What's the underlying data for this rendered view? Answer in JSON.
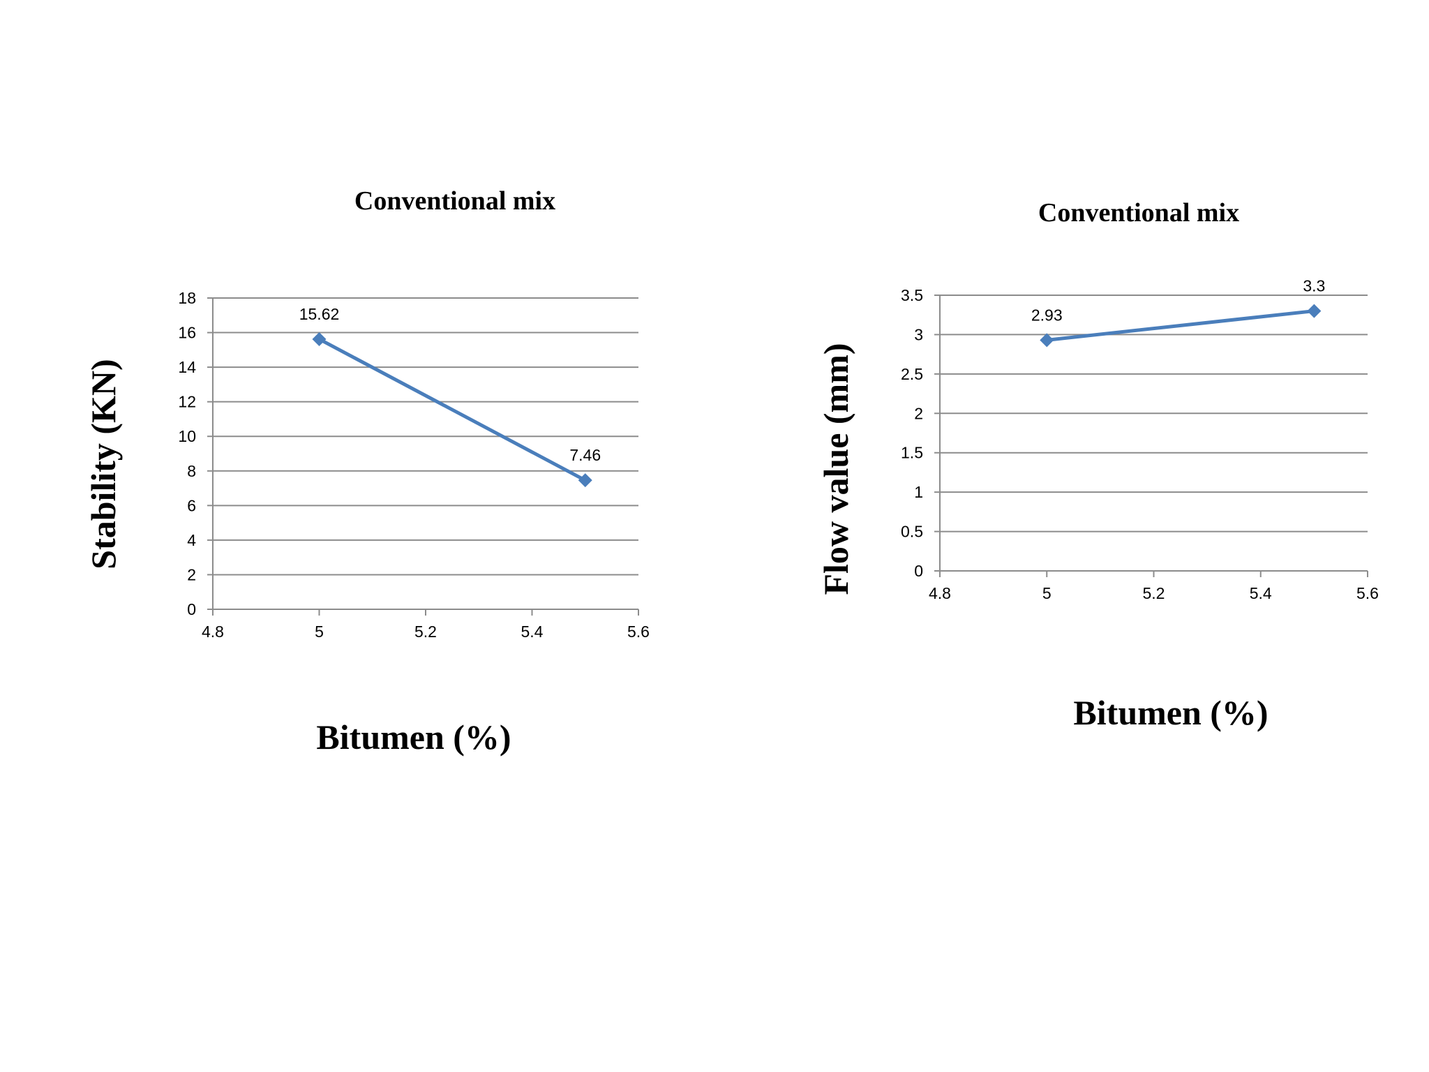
{
  "chart_data": [
    {
      "type": "line",
      "title": "Conventional mix",
      "xlabel": "Bitumen (%)",
      "ylabel": "Stability (KN)",
      "xlim": [
        4.8,
        5.6
      ],
      "ylim": [
        0,
        18
      ],
      "xticks": [
        "4.8",
        "5",
        "5.2",
        "5.4",
        "5.6"
      ],
      "yticks": [
        "0",
        "2",
        "4",
        "6",
        "8",
        "10",
        "12",
        "14",
        "16",
        "18"
      ],
      "grid": true,
      "series": [
        {
          "x": [
            5,
            5.5
          ],
          "y": [
            15.62,
            7.46
          ],
          "labels": [
            "15.62",
            "7.46"
          ],
          "color": "#4a7ebb",
          "marker": "diamond"
        }
      ]
    },
    {
      "type": "line",
      "title": "Conventional mix",
      "xlabel": "Bitumen (%)",
      "ylabel": "Flow value (mm)",
      "xlim": [
        4.8,
        5.6
      ],
      "ylim": [
        0,
        3.5
      ],
      "xticks": [
        "4.8",
        "5",
        "5.2",
        "5.4",
        "5.6"
      ],
      "yticks": [
        "0",
        "0.5",
        "1",
        "1.5",
        "2",
        "2.5",
        "3",
        "3.5"
      ],
      "grid": true,
      "series": [
        {
          "x": [
            5,
            5.5
          ],
          "y": [
            2.93,
            3.3
          ],
          "labels": [
            "2.93",
            "3.3"
          ],
          "color": "#4a7ebb",
          "marker": "diamond"
        }
      ]
    }
  ]
}
